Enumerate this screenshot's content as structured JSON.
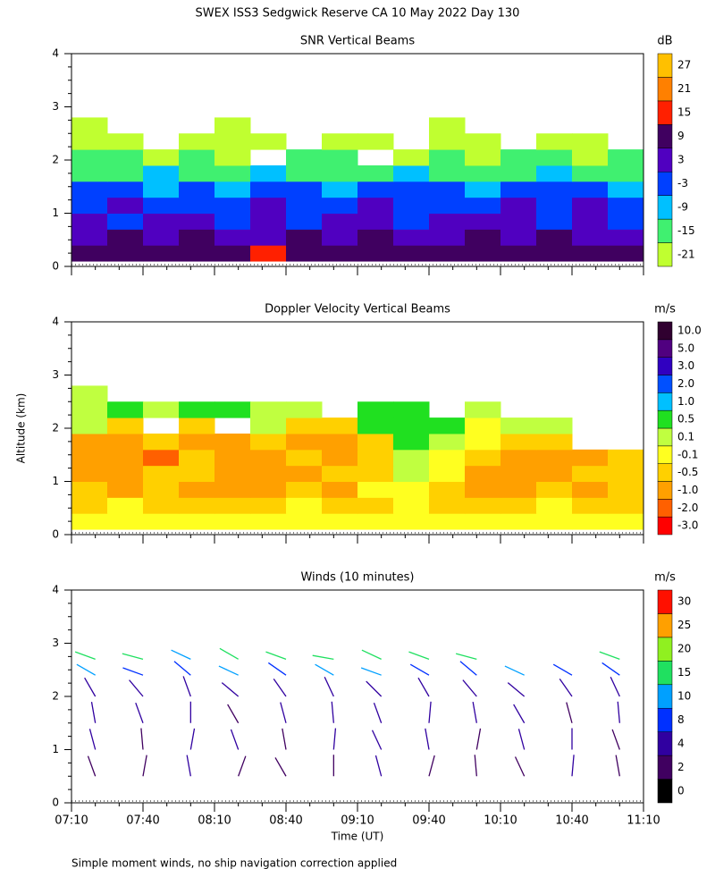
{
  "title": "SWEX ISS3 Sedgwick Reserve CA  10 May 2022 Day 130",
  "footnote": "Simple moment winds, no ship navigation correction applied",
  "chart_data": [
    {
      "type": "heatmap",
      "title": "SNR Vertical Beams",
      "xlim": [
        430,
        670
      ],
      "ylim": [
        0,
        4
      ],
      "yticks": [
        0,
        1,
        2,
        3,
        4
      ],
      "xbins": [
        430,
        445,
        460,
        475,
        490,
        505,
        520,
        535,
        550,
        565,
        580,
        595,
        610,
        625,
        640,
        655,
        670
      ],
      "ybins": [
        0.1,
        0.4,
        0.7,
        1.0,
        1.3,
        1.6,
        1.9,
        2.2,
        2.5,
        2.8
      ],
      "z": [
        [
          12,
          10,
          11,
          9,
          10,
          13,
          11,
          10,
          9,
          11,
          10,
          12,
          9,
          10,
          11,
          10
        ],
        [
          6,
          8,
          5,
          7,
          4,
          6,
          8,
          5,
          7,
          6,
          5,
          8,
          6,
          7,
          5,
          6
        ],
        [
          2,
          -1,
          4,
          1,
          -2,
          3,
          0,
          5,
          2,
          -1,
          3,
          1,
          4,
          0,
          2,
          -1
        ],
        [
          -2,
          1,
          -4,
          0,
          -3,
          2,
          -5,
          -1,
          3,
          -2,
          0,
          -4,
          1,
          -3,
          2,
          -1
        ],
        [
          -5,
          -3,
          -6,
          -4,
          -7,
          -2,
          -5,
          -6,
          -3,
          -5,
          -4,
          -6,
          -2,
          -5,
          -3,
          -6
        ],
        [
          -12,
          -14,
          -10,
          -13,
          -15,
          -11,
          -12,
          -16,
          -13,
          -11,
          -14,
          -12,
          -15,
          -10,
          -13,
          -14
        ],
        [
          -17,
          -15,
          -19,
          -16,
          -18,
          null,
          -17,
          -15,
          null,
          -18,
          -16,
          -19,
          -17,
          -15,
          -18,
          -16
        ],
        [
          -19,
          -20,
          null,
          -18,
          -19,
          -20,
          null,
          -19,
          -18,
          null,
          -20,
          -19,
          null,
          -18,
          -20,
          null
        ],
        [
          -20,
          null,
          null,
          null,
          -21,
          null,
          null,
          null,
          null,
          null,
          -21,
          null,
          null,
          null,
          null,
          null
        ]
      ],
      "colorbar": {
        "title": "dB",
        "ticks": [
          -21,
          -15,
          -9,
          -3,
          3,
          9,
          15,
          21,
          27
        ],
        "colors": [
          "#c0ff30",
          "#40f070",
          "#00c0ff",
          "#0040ff",
          "#5000c0",
          "#400060",
          "#ff2000",
          "#ff8000",
          "#ffc000"
        ]
      }
    },
    {
      "type": "heatmap",
      "title": "Doppler Velocity Vertical Beams",
      "ylabel": "Altitude (km)",
      "xlim": [
        430,
        670
      ],
      "ylim": [
        0,
        4
      ],
      "yticks": [
        0,
        1,
        2,
        3,
        4
      ],
      "xbins": [
        430,
        445,
        460,
        475,
        490,
        505,
        520,
        535,
        550,
        565,
        580,
        595,
        610,
        625,
        640,
        655,
        670
      ],
      "ybins": [
        0.1,
        0.4,
        0.7,
        1.0,
        1.3,
        1.6,
        1.9,
        2.2,
        2.5,
        2.8
      ],
      "z": [
        [
          -0.2,
          -0.1,
          -0.2,
          -0.3,
          -0.2,
          -0.1,
          -0.2,
          -0.3,
          -0.1,
          -0.2,
          -0.2,
          -0.3,
          -0.1,
          -0.2,
          -0.2,
          -0.3
        ],
        [
          -0.4,
          -0.3,
          -0.6,
          -0.4,
          -0.7,
          -0.5,
          -0.3,
          -0.6,
          -0.4,
          -0.2,
          -0.5,
          -0.7,
          -0.4,
          -0.3,
          -0.6,
          -0.4
        ],
        [
          -0.7,
          -0.9,
          -0.5,
          -1.2,
          -0.8,
          -1.4,
          -0.6,
          -0.9,
          -0.3,
          -0.1,
          -0.6,
          -0.9,
          -1.1,
          -0.7,
          -0.8,
          -0.5
        ],
        [
          -0.9,
          -1.1,
          -0.7,
          -0.5,
          -1.3,
          -0.8,
          -1.2,
          -0.6,
          -0.4,
          0.2,
          -0.3,
          -0.8,
          -1.0,
          -0.9,
          -0.4,
          -0.6
        ],
        [
          -1.2,
          -0.8,
          -1.5,
          -0.6,
          -0.9,
          -1.1,
          -0.7,
          -1.3,
          -0.5,
          0.3,
          -0.2,
          -0.7,
          -0.9,
          -1.2,
          -0.8,
          -0.5
        ],
        [
          -0.8,
          -1.0,
          -0.6,
          -0.9,
          -1.2,
          -0.7,
          -0.9,
          -0.8,
          -0.6,
          0.4,
          0.2,
          -0.3,
          -0.6,
          -0.4,
          null,
          null
        ],
        [
          0.3,
          -0.6,
          null,
          -0.4,
          null,
          0.2,
          -0.5,
          -0.7,
          0.4,
          0.6,
          0.5,
          -0.2,
          0.1,
          0.3,
          null,
          null
        ],
        [
          0.2,
          0.4,
          0.3,
          0.5,
          0.6,
          0.3,
          0.2,
          null,
          0.4,
          0.7,
          null,
          0.2,
          null,
          null,
          null,
          null
        ],
        [
          0.1,
          null,
          null,
          null,
          null,
          null,
          null,
          null,
          null,
          null,
          null,
          null,
          null,
          null,
          null,
          null
        ]
      ],
      "colorbar": {
        "title": "m/s",
        "ticks": [
          {
            "value": -3,
            "label": "-3.0"
          },
          {
            "value": -2,
            "label": "-2.0"
          },
          {
            "value": -1,
            "label": "-1.0"
          },
          -0.5,
          -0.1,
          0.1,
          0.5,
          {
            "value": 1,
            "label": "1.0"
          },
          {
            "value": 2,
            "label": "2.0"
          },
          {
            "value": 3,
            "label": "3.0"
          },
          {
            "value": 5,
            "label": "5.0"
          },
          {
            "value": 10,
            "label": "10.0"
          }
        ],
        "colors": [
          "#ff0000",
          "#ff6000",
          "#ffa000",
          "#ffd000",
          "#ffff20",
          "#c0ff40",
          "#20e020",
          "#00c0ff",
          "#0050ff",
          "#3000c0",
          "#500080",
          "#300030"
        ]
      }
    },
    {
      "type": "barb",
      "title": "Winds (10 minutes)",
      "xlabel": "Time (UT)",
      "xlim": [
        430,
        670
      ],
      "ylim": [
        0,
        4
      ],
      "yticks": [
        0,
        1,
        2,
        3,
        4
      ],
      "xticks": [
        {
          "value": 430,
          "label": "07:10"
        },
        {
          "value": 460,
          "label": "07:40"
        },
        {
          "value": 490,
          "label": "08:10"
        },
        {
          "value": 520,
          "label": "08:40"
        },
        {
          "value": 550,
          "label": "09:10"
        },
        {
          "value": 580,
          "label": "09:40"
        },
        {
          "value": 610,
          "label": "10:10"
        },
        {
          "value": 640,
          "label": "10:40"
        },
        {
          "value": 670,
          "label": "11:10"
        }
      ],
      "x": [
        440,
        460,
        480,
        500,
        520,
        540,
        560,
        580,
        600,
        620,
        640,
        660
      ],
      "altitudes": [
        0.5,
        1.0,
        1.5,
        2.0,
        2.4,
        2.7
      ],
      "speed": [
        [
          3,
          2,
          4,
          3,
          2,
          3,
          4,
          3,
          2,
          3,
          4,
          3
        ],
        [
          4,
          3,
          5,
          4,
          3,
          4,
          5,
          4,
          3,
          5,
          4,
          3
        ],
        [
          4,
          5,
          4,
          3,
          4,
          5,
          4,
          5,
          4,
          4,
          3,
          4
        ],
        [
          5,
          4,
          6,
          5,
          4,
          5,
          6,
          5,
          5,
          6,
          4,
          5
        ],
        [
          12,
          8,
          9,
          10,
          9,
          11,
          10,
          8,
          9,
          10,
          9,
          8
        ],
        [
          14,
          13,
          12,
          15,
          16,
          17,
          15,
          14,
          13,
          null,
          null,
          14
        ]
      ],
      "direction": [
        [
          340,
          10,
          350,
          20,
          330,
          0,
          345,
          15,
          355,
          335,
          5,
          350
        ],
        [
          345,
          355,
          10,
          340,
          350,
          5,
          335,
          350,
          10,
          345,
          0,
          340
        ],
        [
          350,
          340,
          0,
          330,
          345,
          355,
          340,
          5,
          350,
          330,
          345,
          355
        ],
        [
          330,
          320,
          340,
          310,
          325,
          335,
          315,
          330,
          320,
          310,
          325,
          335
        ],
        [
          300,
          290,
          310,
          295,
          305,
          300,
          290,
          300,
          310,
          295,
          300,
          305
        ],
        [
          290,
          285,
          295,
          300,
          290,
          280,
          295,
          290,
          285,
          null,
          null,
          290
        ]
      ],
      "colorbar": {
        "title": "m/s",
        "ticks": [
          0,
          2,
          4,
          8,
          10,
          15,
          20,
          25,
          30
        ],
        "colors": [
          "#000000",
          "#400060",
          "#3000a0",
          "#0030ff",
          "#00a0ff",
          "#20e060",
          "#90f020",
          "#ffa000",
          "#ff1000"
        ]
      }
    }
  ]
}
